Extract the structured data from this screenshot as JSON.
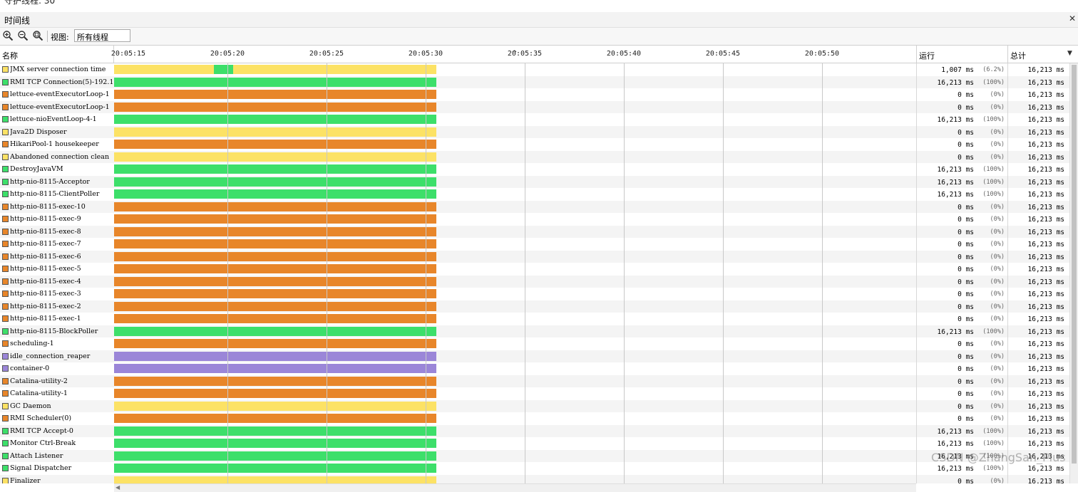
{
  "top_strip_text": "守护线程: 30",
  "panel": {
    "title": "时间线"
  },
  "toolbar": {
    "view_label": "视图:",
    "view_selected": "所有线程",
    "zoom_in_icon": "zoom-in-icon",
    "zoom_out_icon": "zoom-out-icon",
    "zoom_fit_icon": "zoom-fit-icon"
  },
  "columns": {
    "name": "名称",
    "running": "运行",
    "total": "总计"
  },
  "time_ticks": [
    "20:05:15",
    "20:05:20",
    "20:05:25",
    "20:05:30",
    "20:05:35",
    "20:05:40",
    "20:05:45",
    "20:05:50"
  ],
  "colors": {
    "running": "#3ddf6a",
    "waiting": "#e8862a",
    "sleeping": "#fce265",
    "park": "#9b86d8"
  },
  "threads": [
    {
      "name": "JMX server connection time",
      "state": "sleeping",
      "running": "1,007 ms",
      "pct": "(6.2%)",
      "total": "16,213 ms",
      "segment": {
        "from": 0.31,
        "to": 0.37,
        "state": "running"
      }
    },
    {
      "name": "RMI TCP Connection(5)-192.1",
      "state": "running",
      "running": "16,213 ms",
      "pct": "(100%)",
      "total": "16,213 ms"
    },
    {
      "name": "lettuce-eventExecutorLoop-1",
      "state": "waiting",
      "running": "0 ms",
      "pct": "(0%)",
      "total": "16,213 ms"
    },
    {
      "name": "lettuce-eventExecutorLoop-1",
      "state": "waiting",
      "running": "0 ms",
      "pct": "(0%)",
      "total": "16,213 ms"
    },
    {
      "name": "lettuce-nioEventLoop-4-1",
      "state": "running",
      "running": "16,213 ms",
      "pct": "(100%)",
      "total": "16,213 ms"
    },
    {
      "name": "Java2D Disposer",
      "state": "sleeping",
      "running": "0 ms",
      "pct": "(0%)",
      "total": "16,213 ms"
    },
    {
      "name": "HikariPool-1 housekeeper",
      "state": "waiting",
      "running": "0 ms",
      "pct": "(0%)",
      "total": "16,213 ms"
    },
    {
      "name": "Abandoned connection clean",
      "state": "sleeping",
      "running": "0 ms",
      "pct": "(0%)",
      "total": "16,213 ms"
    },
    {
      "name": "DestroyJavaVM",
      "state": "running",
      "running": "16,213 ms",
      "pct": "(100%)",
      "total": "16,213 ms"
    },
    {
      "name": "http-nio-8115-Acceptor",
      "state": "running",
      "running": "16,213 ms",
      "pct": "(100%)",
      "total": "16,213 ms"
    },
    {
      "name": "http-nio-8115-ClientPoller",
      "state": "running",
      "running": "16,213 ms",
      "pct": "(100%)",
      "total": "16,213 ms"
    },
    {
      "name": "http-nio-8115-exec-10",
      "state": "waiting",
      "running": "0 ms",
      "pct": "(0%)",
      "total": "16,213 ms"
    },
    {
      "name": "http-nio-8115-exec-9",
      "state": "waiting",
      "running": "0 ms",
      "pct": "(0%)",
      "total": "16,213 ms"
    },
    {
      "name": "http-nio-8115-exec-8",
      "state": "waiting",
      "running": "0 ms",
      "pct": "(0%)",
      "total": "16,213 ms"
    },
    {
      "name": "http-nio-8115-exec-7",
      "state": "waiting",
      "running": "0 ms",
      "pct": "(0%)",
      "total": "16,213 ms"
    },
    {
      "name": "http-nio-8115-exec-6",
      "state": "waiting",
      "running": "0 ms",
      "pct": "(0%)",
      "total": "16,213 ms"
    },
    {
      "name": "http-nio-8115-exec-5",
      "state": "waiting",
      "running": "0 ms",
      "pct": "(0%)",
      "total": "16,213 ms"
    },
    {
      "name": "http-nio-8115-exec-4",
      "state": "waiting",
      "running": "0 ms",
      "pct": "(0%)",
      "total": "16,213 ms"
    },
    {
      "name": "http-nio-8115-exec-3",
      "state": "waiting",
      "running": "0 ms",
      "pct": "(0%)",
      "total": "16,213 ms"
    },
    {
      "name": "http-nio-8115-exec-2",
      "state": "waiting",
      "running": "0 ms",
      "pct": "(0%)",
      "total": "16,213 ms"
    },
    {
      "name": "http-nio-8115-exec-1",
      "state": "waiting",
      "running": "0 ms",
      "pct": "(0%)",
      "total": "16,213 ms"
    },
    {
      "name": "http-nio-8115-BlockPoller",
      "state": "running",
      "running": "16,213 ms",
      "pct": "(100%)",
      "total": "16,213 ms"
    },
    {
      "name": "scheduling-1",
      "state": "waiting",
      "running": "0 ms",
      "pct": "(0%)",
      "total": "16,213 ms"
    },
    {
      "name": "idle_connection_reaper",
      "state": "park",
      "running": "0 ms",
      "pct": "(0%)",
      "total": "16,213 ms"
    },
    {
      "name": "container-0",
      "state": "park",
      "running": "0 ms",
      "pct": "(0%)",
      "total": "16,213 ms"
    },
    {
      "name": "Catalina-utility-2",
      "state": "waiting",
      "running": "0 ms",
      "pct": "(0%)",
      "total": "16,213 ms"
    },
    {
      "name": "Catalina-utility-1",
      "state": "waiting",
      "running": "0 ms",
      "pct": "(0%)",
      "total": "16,213 ms"
    },
    {
      "name": "GC Daemon",
      "state": "sleeping",
      "running": "0 ms",
      "pct": "(0%)",
      "total": "16,213 ms"
    },
    {
      "name": "RMI Scheduler(0)",
      "state": "waiting",
      "running": "0 ms",
      "pct": "(0%)",
      "total": "16,213 ms"
    },
    {
      "name": "RMI TCP Accept-0",
      "state": "running",
      "running": "16,213 ms",
      "pct": "(100%)",
      "total": "16,213 ms"
    },
    {
      "name": "Monitor Ctrl-Break",
      "state": "running",
      "running": "16,213 ms",
      "pct": "(100%)",
      "total": "16,213 ms"
    },
    {
      "name": "Attach Listener",
      "state": "running",
      "running": "16,213 ms",
      "pct": "(100%)",
      "total": "16,213 ms"
    },
    {
      "name": "Signal Dispatcher",
      "state": "running",
      "running": "16,213 ms",
      "pct": "(100%)",
      "total": "16,213 ms"
    },
    {
      "name": "Finalizer",
      "state": "sleeping",
      "running": "0 ms",
      "pct": "(0%)",
      "total": "16,213 ms"
    }
  ],
  "watermark": "CSDN @ZhangSan_Plus"
}
